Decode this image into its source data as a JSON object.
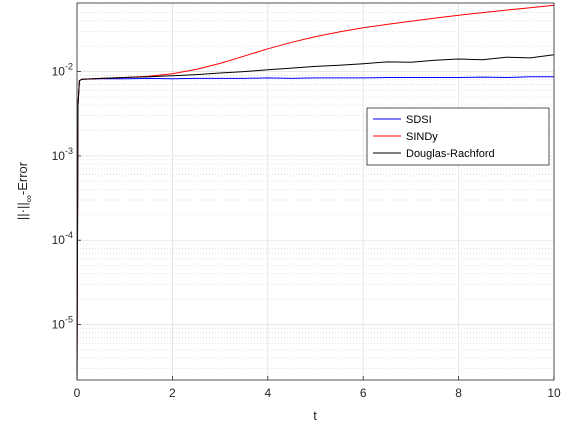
{
  "chart_data": {
    "type": "line",
    "title": "",
    "xlabel": "t",
    "ylabel_main": "||·||",
    "ylabel_sub": "∞",
    "ylabel_suffix": "-Error",
    "xlim": [
      0,
      10
    ],
    "ylim": [
      2.2e-06,
      0.065
    ],
    "yscale": "log",
    "grid": true,
    "minor_grid": true,
    "legend_position": "right",
    "x_ticks": [
      0,
      2,
      4,
      6,
      8,
      10
    ],
    "x_tick_labels": [
      "0",
      "2",
      "4",
      "6",
      "8",
      "10"
    ],
    "y_ticks": [
      {
        "value": 1e-05,
        "base": "10",
        "exp": "-5"
      },
      {
        "value": 0.0001,
        "base": "10",
        "exp": "-4"
      },
      {
        "value": 0.001,
        "base": "10",
        "exp": "-3"
      },
      {
        "value": 0.01,
        "base": "10",
        "exp": "-2"
      }
    ],
    "series": [
      {
        "name": "SDSI",
        "color": "#0000ff",
        "x": [
          0,
          0.02,
          0.05,
          0.1,
          0.5,
          1,
          1.5,
          2,
          2.5,
          3,
          3.5,
          4,
          4.5,
          5,
          5.5,
          6,
          6.5,
          7,
          7.5,
          8,
          8.5,
          9,
          9.5,
          10
        ],
        "y": [
          2.2e-06,
          0.004,
          0.0078,
          0.0081,
          0.0082,
          0.0082,
          0.0083,
          0.0082,
          0.0083,
          0.0083,
          0.0083,
          0.0084,
          0.0083,
          0.0084,
          0.0084,
          0.0084,
          0.0085,
          0.0085,
          0.0085,
          0.0085,
          0.0086,
          0.0085,
          0.0087,
          0.0087
        ]
      },
      {
        "name": "SINDy",
        "color": "#ff0000",
        "x": [
          0,
          0.02,
          0.05,
          0.1,
          0.5,
          1,
          1.5,
          2,
          2.5,
          3,
          3.5,
          4,
          4.5,
          5,
          5.5,
          6,
          6.5,
          7,
          7.5,
          8,
          8.5,
          9,
          9.5,
          10
        ],
        "y": [
          2.2e-06,
          0.004,
          0.0078,
          0.0081,
          0.0083,
          0.0085,
          0.0088,
          0.0094,
          0.0106,
          0.0125,
          0.0152,
          0.0186,
          0.0222,
          0.026,
          0.0295,
          0.033,
          0.0362,
          0.0395,
          0.043,
          0.0465,
          0.05,
          0.0535,
          0.057,
          0.061
        ]
      },
      {
        "name": "Douglas-Rachford",
        "color": "#000000",
        "x": [
          0,
          0.02,
          0.05,
          0.1,
          0.5,
          1,
          1.5,
          2,
          2.5,
          3,
          3.5,
          4,
          4.5,
          5,
          5.5,
          6,
          6.5,
          7,
          7.5,
          8,
          8.5,
          9,
          9.5,
          10
        ],
        "y": [
          2.2e-06,
          0.004,
          0.0078,
          0.0081,
          0.0083,
          0.0085,
          0.0087,
          0.0089,
          0.0092,
          0.0096,
          0.01,
          0.0105,
          0.011,
          0.0115,
          0.0119,
          0.0124,
          0.013,
          0.0129,
          0.0136,
          0.0141,
          0.0138,
          0.0148,
          0.0145,
          0.0158
        ]
      }
    ]
  }
}
